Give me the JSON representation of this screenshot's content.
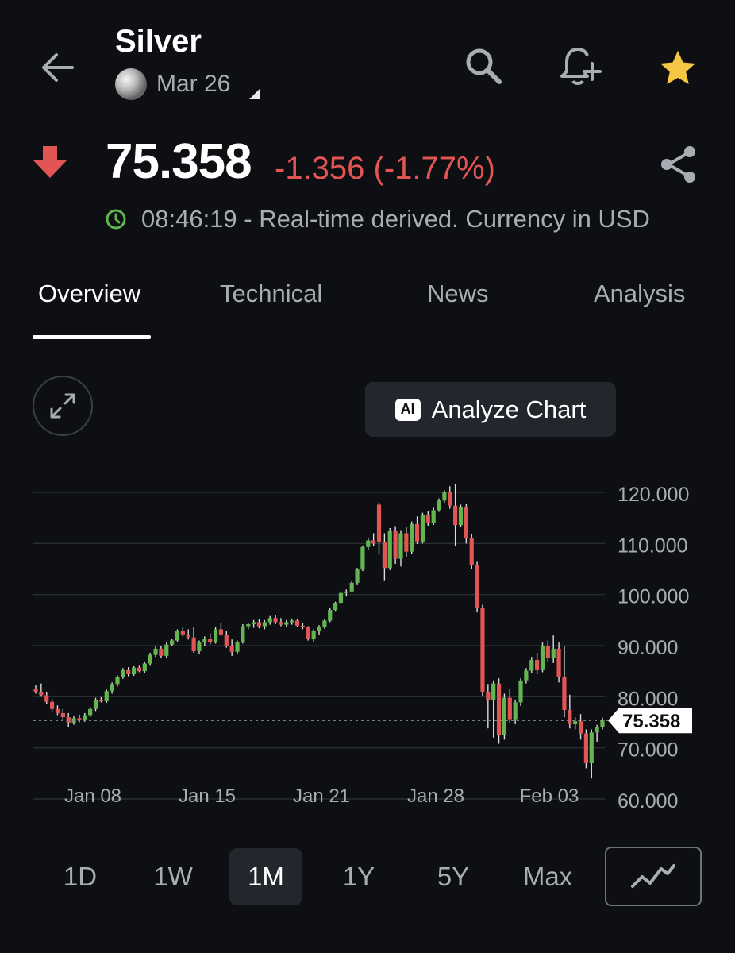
{
  "header": {
    "title": "Silver",
    "contract_month": "Mar 26",
    "icons": [
      "back-arrow-icon",
      "search-icon",
      "add-alert-icon",
      "star-icon"
    ],
    "star_color": "#f6c744"
  },
  "quote": {
    "price": "75.358",
    "change": "-1.356 (-1.77%)",
    "direction": "down",
    "change_color": "#e15554",
    "time": "08:46:19",
    "time_note": "- Real-time derived. Currency in USD"
  },
  "tabs": [
    {
      "label": "Overview",
      "active": true
    },
    {
      "label": "Technical",
      "active": false
    },
    {
      "label": "News",
      "active": false
    },
    {
      "label": "Analysis",
      "active": false
    }
  ],
  "chart_controls": {
    "analyze_label": "Analyze Chart",
    "ai_badge": "AI"
  },
  "ranges": [
    {
      "label": "1D",
      "active": false
    },
    {
      "label": "1W",
      "active": false
    },
    {
      "label": "1M",
      "active": true
    },
    {
      "label": "1Y",
      "active": false
    },
    {
      "label": "5Y",
      "active": false
    },
    {
      "label": "Max",
      "active": false
    }
  ],
  "chart_data": {
    "type": "candlestick",
    "y_ticks": [
      "120.000",
      "110.000",
      "100.000",
      "90.000",
      "80.000",
      "70.000",
      "60.000"
    ],
    "ylim": [
      60,
      120
    ],
    "x_ticks": [
      "Jan 08",
      "Jan 15",
      "Jan 21",
      "Jan 28",
      "Feb 03"
    ],
    "last_price_label": "75.358",
    "last_price": 75.358,
    "up_color": "#62b54f",
    "down_color": "#e15554",
    "candles": [
      [
        81.5,
        82.2,
        80.6,
        81.0
      ],
      [
        81.0,
        82.6,
        80.0,
        80.3
      ],
      [
        80.3,
        81.0,
        78.5,
        79.0
      ],
      [
        79.0,
        79.5,
        77.2,
        77.6
      ],
      [
        77.6,
        78.3,
        76.4,
        76.8
      ],
      [
        76.8,
        77.6,
        75.5,
        76.0
      ],
      [
        76.0,
        76.8,
        74.0,
        74.9
      ],
      [
        74.9,
        76.2,
        74.5,
        75.8
      ],
      [
        75.8,
        76.5,
        75.0,
        75.4
      ],
      [
        75.4,
        76.8,
        75.1,
        76.4
      ],
      [
        76.4,
        78.0,
        76.0,
        77.6
      ],
      [
        77.6,
        79.8,
        77.2,
        79.4
      ],
      [
        79.4,
        79.9,
        78.9,
        79.1
      ],
      [
        79.1,
        81.4,
        78.8,
        81.1
      ],
      [
        81.1,
        82.8,
        80.6,
        82.5
      ],
      [
        82.5,
        84.2,
        82.0,
        83.9
      ],
      [
        83.9,
        85.6,
        83.5,
        85.2
      ],
      [
        85.2,
        85.8,
        84.0,
        84.4
      ],
      [
        84.4,
        86.0,
        84.1,
        85.7
      ],
      [
        85.7,
        86.2,
        84.8,
        85.0
      ],
      [
        85.0,
        86.8,
        84.7,
        86.5
      ],
      [
        86.5,
        88.6,
        86.2,
        88.2
      ],
      [
        88.2,
        89.8,
        87.8,
        89.4
      ],
      [
        89.4,
        90.0,
        87.6,
        88.0
      ],
      [
        88.0,
        90.6,
        87.5,
        90.2
      ],
      [
        90.2,
        91.3,
        89.9,
        91.0
      ],
      [
        91.0,
        93.2,
        90.8,
        92.9
      ],
      [
        92.9,
        93.7,
        91.8,
        92.2
      ],
      [
        92.2,
        93.2,
        91.2,
        91.6
      ],
      [
        91.6,
        93.6,
        88.6,
        88.9
      ],
      [
        88.9,
        91.0,
        88.4,
        90.6
      ],
      [
        90.6,
        91.8,
        89.9,
        91.4
      ],
      [
        91.4,
        92.4,
        90.2,
        90.6
      ],
      [
        90.6,
        93.6,
        90.4,
        93.2
      ],
      [
        93.2,
        94.4,
        91.9,
        92.2
      ],
      [
        92.2,
        92.9,
        89.6,
        90.0
      ],
      [
        90.0,
        91.2,
        88.0,
        88.8
      ],
      [
        88.8,
        91.0,
        88.4,
        90.6
      ],
      [
        90.6,
        94.2,
        90.4,
        93.8
      ],
      [
        93.8,
        94.5,
        93.2,
        94.2
      ],
      [
        94.2,
        95.0,
        93.5,
        94.6
      ],
      [
        94.6,
        95.2,
        93.4,
        93.8
      ],
      [
        93.8,
        95.0,
        93.2,
        94.6
      ],
      [
        94.6,
        95.8,
        94.1,
        95.4
      ],
      [
        95.4,
        95.9,
        94.2,
        94.6
      ],
      [
        94.6,
        95.4,
        93.8,
        94.1
      ],
      [
        94.1,
        95.0,
        93.6,
        94.6
      ],
      [
        94.6,
        95.3,
        94.1,
        94.9
      ],
      [
        94.9,
        95.2,
        93.6,
        93.9
      ],
      [
        93.9,
        94.4,
        93.2,
        93.6
      ],
      [
        93.6,
        93.8,
        91.0,
        91.4
      ],
      [
        91.4,
        93.2,
        90.8,
        92.8
      ],
      [
        92.8,
        94.0,
        92.2,
        93.6
      ],
      [
        93.6,
        95.2,
        93.3,
        94.9
      ],
      [
        94.9,
        97.3,
        94.6,
        97.0
      ],
      [
        97.0,
        98.6,
        96.8,
        98.4
      ],
      [
        98.4,
        100.6,
        98.2,
        100.3
      ],
      [
        100.3,
        101.0,
        99.6,
        100.6
      ],
      [
        100.6,
        102.6,
        100.4,
        102.3
      ],
      [
        102.3,
        105.2,
        102.0,
        104.9
      ],
      [
        104.9,
        109.6,
        104.6,
        109.3
      ],
      [
        109.3,
        111.0,
        108.8,
        110.6
      ],
      [
        110.6,
        112.0,
        109.5,
        110.0
      ],
      [
        117.6,
        118.0,
        107.8,
        110.3
      ],
      [
        110.3,
        112.0,
        102.8,
        105.2
      ],
      [
        105.2,
        113.0,
        104.8,
        112.4
      ],
      [
        112.4,
        113.4,
        106.0,
        107.0
      ],
      [
        107.0,
        112.6,
        105.5,
        112.0
      ],
      [
        112.0,
        113.2,
        107.4,
        108.4
      ],
      [
        108.4,
        114.3,
        107.9,
        113.8
      ],
      [
        113.8,
        115.3,
        109.9,
        110.4
      ],
      [
        110.4,
        116.0,
        110.0,
        115.6
      ],
      [
        115.6,
        116.4,
        113.5,
        114.0
      ],
      [
        114.0,
        117.0,
        113.6,
        116.5
      ],
      [
        116.5,
        118.8,
        116.2,
        118.4
      ],
      [
        118.4,
        120.4,
        118.0,
        120.1
      ],
      [
        120.1,
        121.2,
        116.8,
        117.4
      ],
      [
        117.4,
        121.7,
        109.5,
        113.6
      ],
      [
        113.6,
        117.6,
        113.2,
        117.2
      ],
      [
        117.2,
        117.8,
        110.0,
        111.0
      ],
      [
        111.0,
        111.9,
        105.0,
        105.8
      ],
      [
        105.8,
        106.4,
        96.5,
        97.4
      ],
      [
        97.4,
        98.0,
        80.2,
        81.0
      ],
      [
        81.0,
        82.5,
        73.8,
        79.4
      ],
      [
        79.4,
        83.2,
        72.0,
        82.6
      ],
      [
        82.6,
        83.6,
        70.8,
        72.5
      ],
      [
        72.5,
        80.6,
        71.6,
        79.8
      ],
      [
        79.8,
        81.6,
        74.8,
        75.6
      ],
      [
        75.6,
        79.4,
        74.6,
        78.9
      ],
      [
        78.9,
        83.6,
        78.2,
        83.2
      ],
      [
        83.2,
        85.6,
        82.6,
        85.1
      ],
      [
        85.1,
        87.8,
        84.6,
        87.2
      ],
      [
        87.2,
        88.6,
        84.4,
        85.2
      ],
      [
        85.2,
        90.6,
        84.8,
        89.9
      ],
      [
        89.9,
        91.0,
        86.8,
        87.6
      ],
      [
        87.6,
        92.0,
        86.6,
        89.4
      ],
      [
        89.4,
        90.6,
        82.8,
        83.8
      ],
      [
        83.8,
        89.8,
        76.0,
        77.4
      ],
      [
        77.4,
        80.4,
        73.8,
        74.6
      ],
      [
        74.6,
        76.0,
        73.6,
        75.2
      ],
      [
        75.2,
        76.6,
        71.6,
        72.8
      ],
      [
        72.8,
        73.6,
        66.0,
        67.0
      ],
      [
        67.0,
        73.6,
        64.0,
        73.0
      ],
      [
        73.0,
        74.5,
        71.2,
        74.1
      ],
      [
        74.1,
        75.9,
        73.6,
        75.358
      ]
    ]
  }
}
